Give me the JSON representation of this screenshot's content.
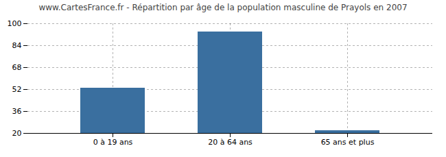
{
  "chart_data": {
    "type": "bar",
    "title": "www.CartesFrance.fr - Répartition par âge de la population masculine de Prayols en 2007",
    "categories": [
      "0 à 19 ans",
      "20 à 64 ans",
      "65 ans et plus"
    ],
    "values": [
      53,
      94,
      22
    ],
    "color": "#3a6f9f",
    "ylim": [
      20,
      100
    ],
    "yticks": [
      20,
      36,
      52,
      68,
      84,
      100
    ],
    "grid": true
  }
}
